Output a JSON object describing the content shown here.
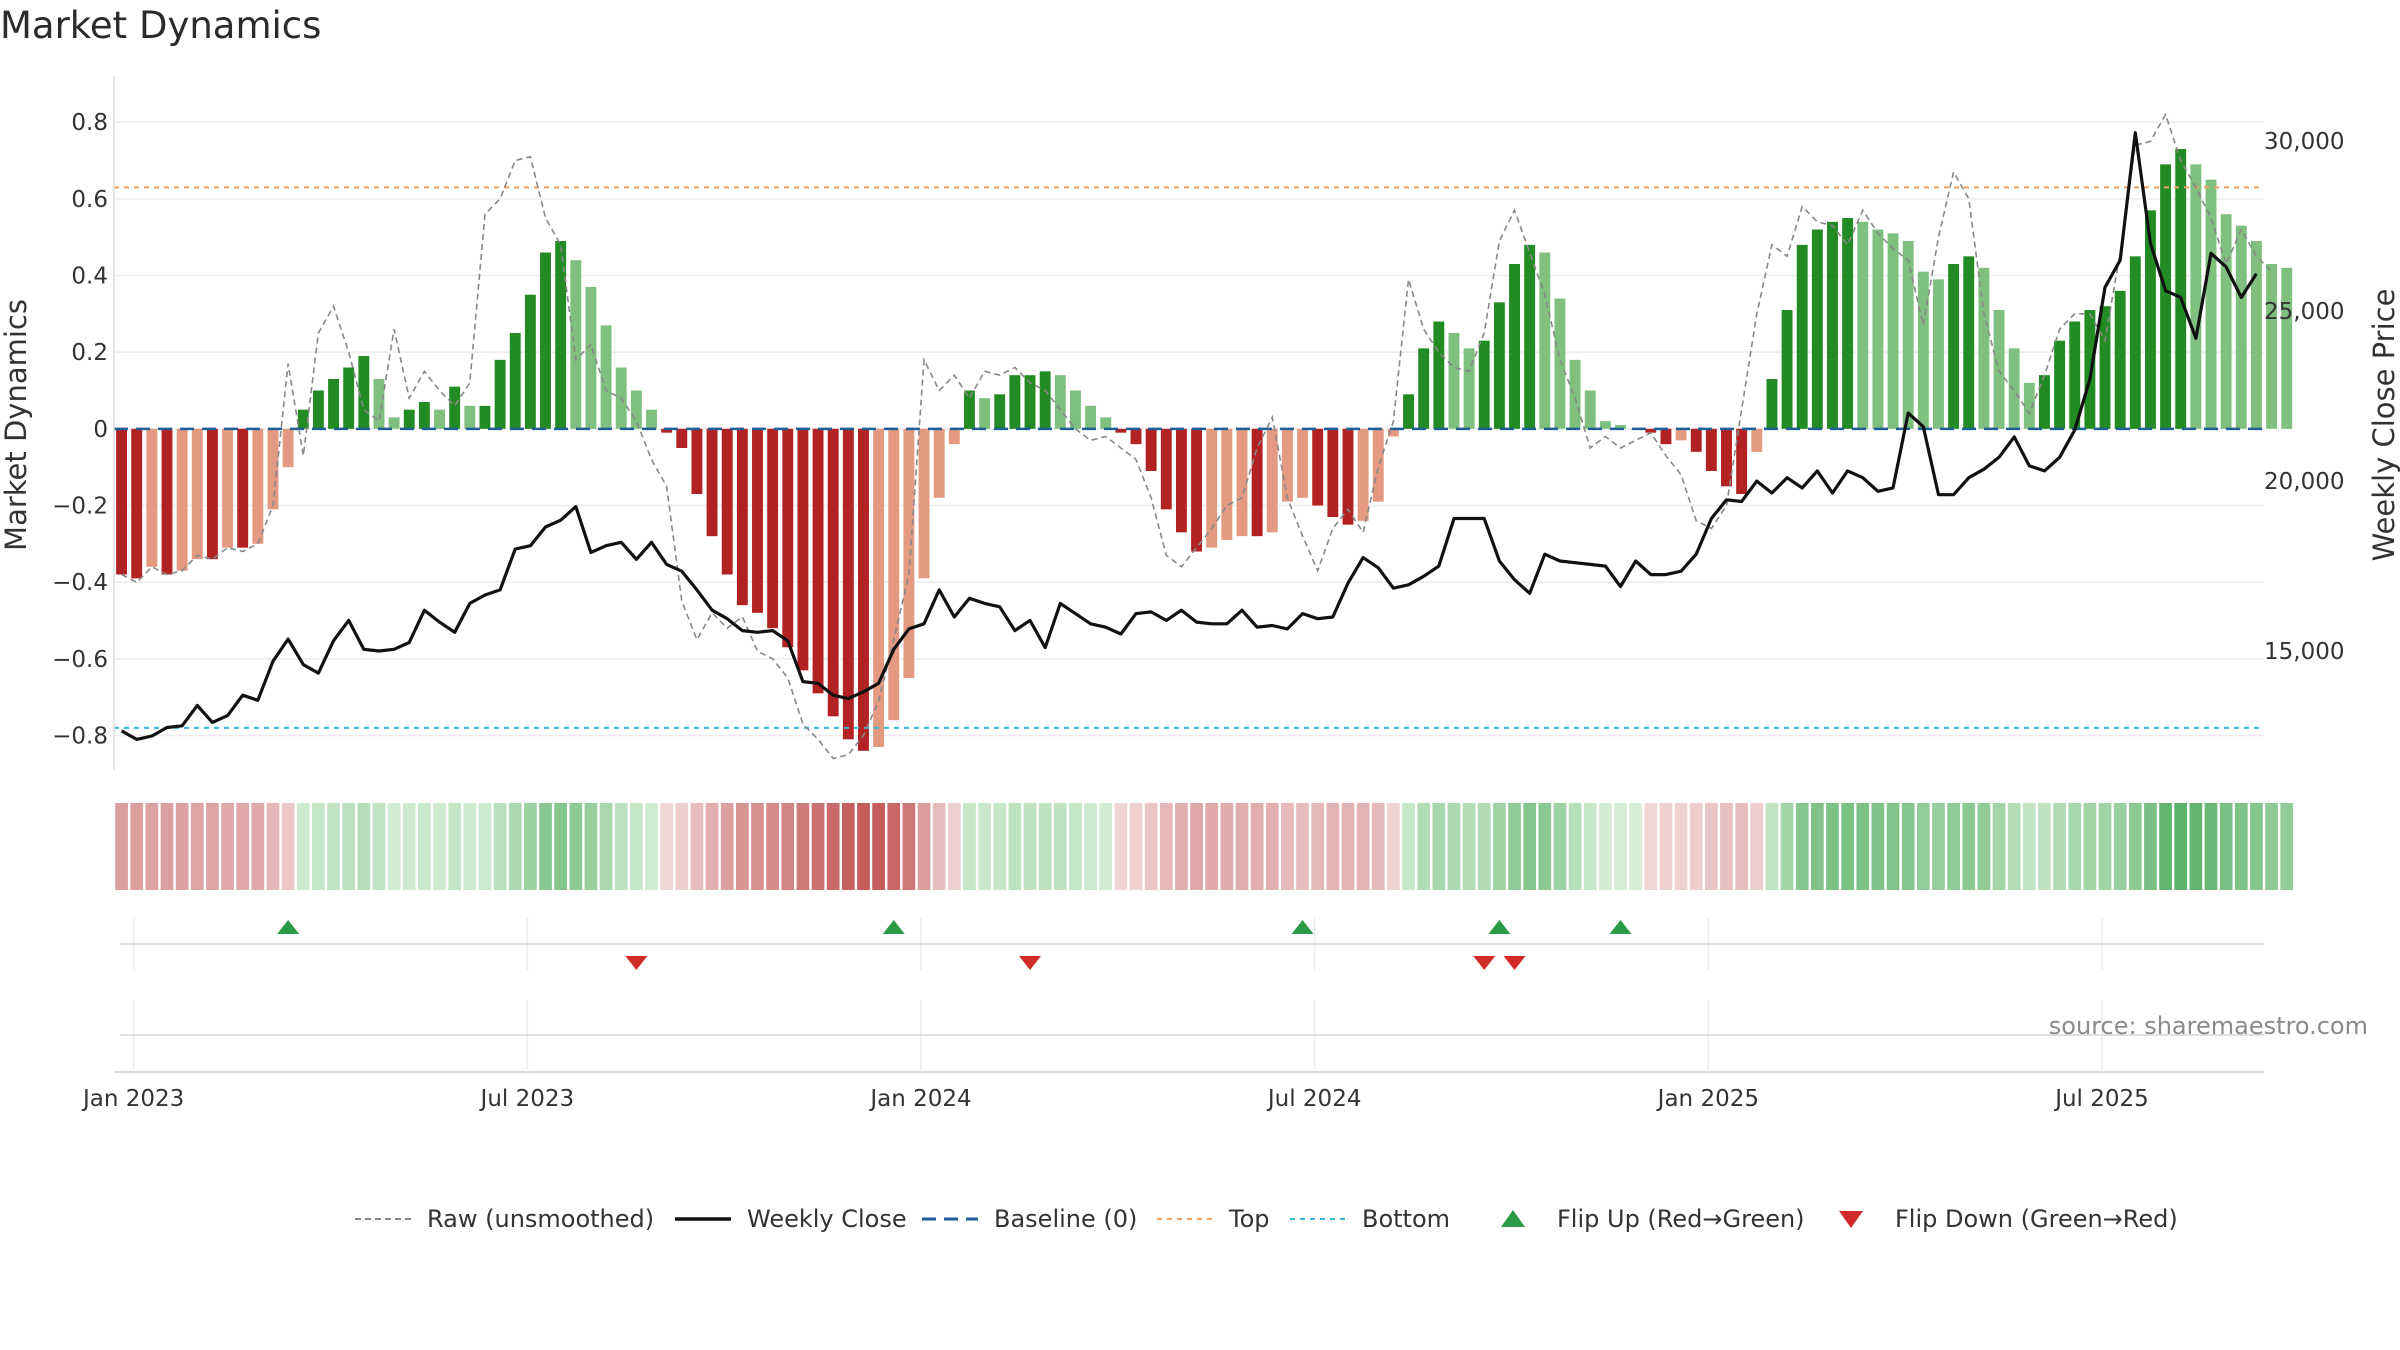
{
  "title": "Market Dynamics",
  "source": "source: sharemaestro.com",
  "colors": {
    "strong_green": "#238b23",
    "light_green": "#7fc07f",
    "strong_red": "#b22222",
    "light_red": "#e39a80",
    "raw": "#888888",
    "close": "#111111",
    "baseline": "#1f5f99",
    "top": "#f0a060",
    "bottom": "#3ab8d8",
    "flip_up": "#2a9a45",
    "flip_down": "#d02a2a"
  },
  "chart_data": {
    "type": "bar",
    "title": "Market Dynamics",
    "ylabel": "Market Dynamics",
    "y2label": "Weekly Close Price",
    "ylim": [
      -0.89,
      0.91
    ],
    "y2lim": [
      11500,
      31800
    ],
    "yticks": [
      -0.8,
      -0.6,
      -0.4,
      -0.2,
      0,
      0.2,
      0.4,
      0.6,
      0.8
    ],
    "ytick_labels": [
      "−0.8",
      "−0.6",
      "−0.4",
      "−0.2",
      "0",
      "0.2",
      "0.4",
      "0.6",
      "0.8"
    ],
    "y2ticks": [
      15000,
      20000,
      25000,
      30000
    ],
    "y2tick_labels": [
      "15,000",
      "20,000",
      "25,000",
      "30,000"
    ],
    "x_labels": [
      "Jan 2023",
      "Jul 2023",
      "Jan 2024",
      "Jul 2024",
      "Jan 2025",
      "Jul 2025"
    ],
    "x_label_weeks": [
      0,
      26,
      52,
      78,
      104,
      130
    ],
    "top_line": 0.63,
    "bottom_line": -0.78,
    "baseline": 0,
    "weeks": 142,
    "momentum": [
      -0.38,
      -0.39,
      -0.36,
      -0.38,
      -0.37,
      -0.34,
      -0.34,
      -0.31,
      -0.31,
      -0.3,
      -0.21,
      -0.1,
      0.05,
      0.1,
      0.13,
      0.16,
      0.19,
      0.13,
      0.03,
      0.05,
      0.07,
      0.05,
      0.11,
      0.06,
      0.06,
      0.18,
      0.25,
      0.35,
      0.46,
      0.49,
      0.44,
      0.37,
      0.27,
      0.16,
      0.1,
      0.05,
      -0.01,
      -0.05,
      -0.17,
      -0.28,
      -0.38,
      -0.46,
      -0.48,
      -0.52,
      -0.57,
      -0.63,
      -0.69,
      -0.75,
      -0.81,
      -0.84,
      -0.83,
      -0.76,
      -0.65,
      -0.39,
      -0.18,
      -0.04,
      0.1,
      0.08,
      0.09,
      0.14,
      0.14,
      0.15,
      0.14,
      0.1,
      0.06,
      0.03,
      -0.01,
      -0.04,
      -0.11,
      -0.21,
      -0.27,
      -0.32,
      -0.31,
      -0.29,
      -0.28,
      -0.28,
      -0.27,
      -0.19,
      -0.18,
      -0.2,
      -0.23,
      -0.25,
      -0.24,
      -0.19,
      -0.02,
      0.09,
      0.21,
      0.28,
      0.25,
      0.21,
      0.23,
      0.33,
      0.43,
      0.48,
      0.46,
      0.34,
      0.18,
      0.1,
      0.02,
      0.01,
      0.0,
      -0.01,
      -0.04,
      -0.03,
      -0.06,
      -0.11,
      -0.15,
      -0.17,
      -0.06,
      0.13,
      0.31,
      0.48,
      0.52,
      0.54,
      0.55,
      0.54,
      0.52,
      0.51,
      0.49,
      0.41,
      0.39,
      0.43,
      0.45,
      0.42,
      0.31,
      0.21,
      0.12,
      0.14,
      0.23,
      0.28,
      0.31,
      0.32,
      0.36,
      0.45,
      0.57,
      0.69,
      0.73,
      0.69,
      0.65,
      0.56,
      0.53,
      0.49,
      0.43,
      0.42
    ],
    "raw": [
      -0.38,
      -0.4,
      -0.36,
      -0.38,
      -0.37,
      -0.33,
      -0.34,
      -0.31,
      -0.32,
      -0.3,
      -0.2,
      0.17,
      -0.07,
      0.25,
      0.32,
      0.2,
      0.05,
      0.02,
      0.26,
      0.08,
      0.15,
      0.1,
      0.06,
      0.12,
      0.56,
      0.6,
      0.7,
      0.71,
      0.55,
      0.48,
      0.18,
      0.22,
      0.1,
      0.08,
      0.02,
      -0.08,
      -0.15,
      -0.45,
      -0.55,
      -0.48,
      -0.52,
      -0.49,
      -0.58,
      -0.6,
      -0.65,
      -0.77,
      -0.81,
      -0.86,
      -0.85,
      -0.8,
      -0.71,
      -0.55,
      -0.38,
      0.18,
      0.1,
      0.14,
      0.08,
      0.15,
      0.14,
      0.16,
      0.12,
      0.1,
      0.05,
      0.0,
      -0.03,
      -0.02,
      -0.05,
      -0.08,
      -0.18,
      -0.33,
      -0.36,
      -0.31,
      -0.26,
      -0.2,
      -0.18,
      -0.05,
      0.03,
      -0.18,
      -0.28,
      -0.37,
      -0.26,
      -0.21,
      -0.27,
      -0.1,
      0.02,
      0.39,
      0.26,
      0.2,
      0.16,
      0.15,
      0.25,
      0.49,
      0.57,
      0.46,
      0.35,
      0.18,
      0.08,
      -0.05,
      -0.02,
      -0.05,
      -0.03,
      -0.01,
      -0.07,
      -0.12,
      -0.24,
      -0.26,
      -0.2,
      0.05,
      0.3,
      0.48,
      0.45,
      0.58,
      0.54,
      0.53,
      0.48,
      0.57,
      0.51,
      0.47,
      0.44,
      0.27,
      0.5,
      0.67,
      0.6,
      0.3,
      0.15,
      0.1,
      0.04,
      0.14,
      0.26,
      0.3,
      0.3,
      0.23,
      0.46,
      0.74,
      0.75,
      0.82,
      0.7,
      0.63,
      0.55,
      0.43,
      0.52,
      0.45,
      0.41
    ]
  },
  "close": [
    12650,
    12400,
    12500,
    12750,
    12800,
    13400,
    12900,
    13100,
    13700,
    13550,
    14700,
    15350,
    14600,
    14350,
    15300,
    15900,
    15050,
    15000,
    15050,
    15250,
    16200,
    15850,
    15550,
    16400,
    16650,
    16800,
    18000,
    18100,
    18650,
    18850,
    19250,
    17900,
    18100,
    18200,
    17700,
    18200,
    17550,
    17350,
    16800,
    16200,
    15950,
    15600,
    15550,
    15600,
    15300,
    14100,
    14050,
    13700,
    13600,
    13800,
    14050,
    15050,
    15650,
    15800,
    16800,
    16000,
    16550,
    16400,
    16300,
    15600,
    15900,
    15100,
    16400,
    16100,
    15800,
    15700,
    15500,
    16100,
    16150,
    15900,
    16200,
    15850,
    15800,
    15800,
    16200,
    15700,
    15750,
    15650,
    16100,
    15950,
    16000,
    17000,
    17750,
    17450,
    16850,
    16950,
    17200,
    17500,
    18900,
    18900,
    18900,
    17650,
    17100,
    16700,
    17850,
    17650,
    17600,
    17550,
    17500,
    16900,
    17650,
    17250,
    17250,
    17350,
    17850,
    18900,
    19450,
    19400,
    20000,
    19650,
    20100,
    19800,
    20300,
    19650,
    20300,
    20100,
    19700,
    19800,
    22000,
    21600,
    19600,
    19600,
    20100,
    20350,
    20700,
    21300,
    20450,
    20300,
    20700,
    21500,
    23000,
    25700,
    26500,
    30250,
    27000,
    25600,
    25400,
    24200,
    26700,
    26300,
    25400,
    26100
  ],
  "flip_up_weeks": [
    11,
    51,
    78,
    91,
    99
  ],
  "flip_down_weeks": [
    34,
    60,
    90,
    92
  ],
  "legend": [
    {
      "kind": "raw",
      "label": "Raw (unsmoothed)"
    },
    {
      "kind": "close",
      "label": "Weekly Close"
    },
    {
      "kind": "baseline",
      "label": "Baseline (0)"
    },
    {
      "kind": "top",
      "label": "Top"
    },
    {
      "kind": "bottom",
      "label": "Bottom"
    },
    {
      "kind": "up",
      "label": "Flip Up (Red→Green)"
    },
    {
      "kind": "down",
      "label": "Flip Down (Green→Red)"
    }
  ]
}
